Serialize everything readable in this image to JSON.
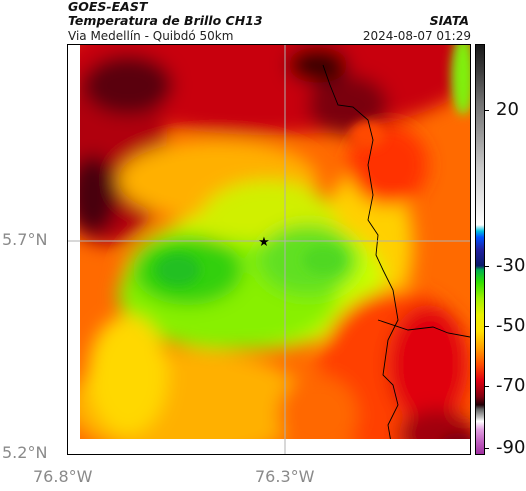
{
  "header": {
    "satellite": "GOES-EAST",
    "product": "Temperatura de Brillo CH13",
    "region": "Via Medellín - Quibdó 50km",
    "organization": "SIATA",
    "datetime": "2024-08-07 01:29"
  },
  "map": {
    "lat_ticks": [
      "5.7°N",
      "5.2°N"
    ],
    "lon_ticks": [
      "76.8°W",
      "76.3°W"
    ],
    "marker": "star",
    "grid": true
  },
  "colorbar": {
    "labels": [
      "20",
      "-30",
      "-50",
      "-70",
      "-90"
    ],
    "unit_hint": ""
  },
  "colors": {
    "frame": "#000000",
    "gridline": "#b0b0b0",
    "tick_label": "#8a8a8a"
  }
}
